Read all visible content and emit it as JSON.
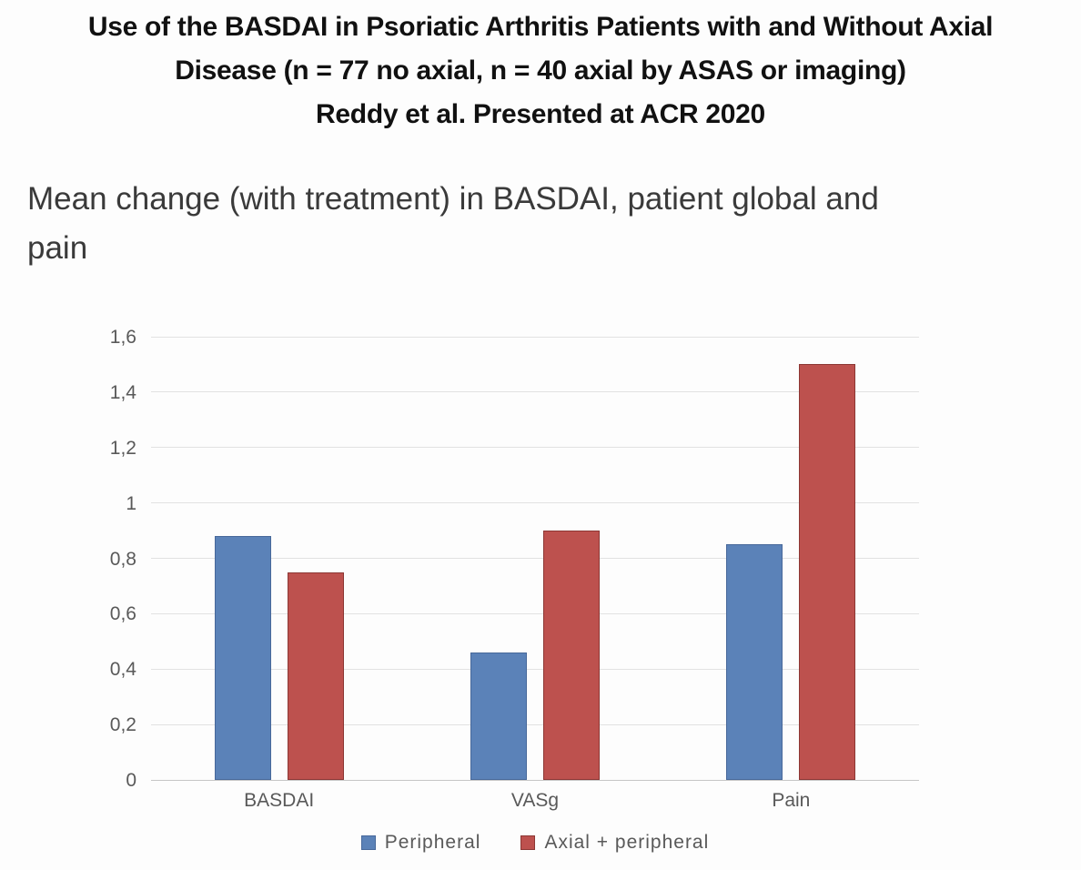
{
  "header": {
    "title_lines": [
      "Use of the BASDAI in Psoriatic Arthritis Patients with and Without Axial",
      "Disease (n = 77 no axial, n = 40 axial by ASAS or imaging)",
      "Reddy et al. Presented at ACR 2020"
    ],
    "subtitle": "Mean change (with treatment) in BASDAI, patient global and pain"
  },
  "chart_data": {
    "type": "bar",
    "title": "Mean change (with treatment) in BASDAI, patient global and pain",
    "categories": [
      "BASDAI",
      "VASg",
      "Pain"
    ],
    "series": [
      {
        "name": "Peripheral",
        "color": "#5b82b8",
        "border_color": "#47689a",
        "values": [
          0.88,
          0.46,
          0.85
        ]
      },
      {
        "name": "Axial + peripheral",
        "color": "#bd514e",
        "border_color": "#8c3734",
        "values": [
          0.75,
          0.9,
          1.5
        ]
      }
    ],
    "xlabel": "",
    "ylabel": "",
    "ylim": [
      0,
      1.6
    ],
    "ytick_step": 0.2,
    "ytick_labels": [
      "0",
      "0,2",
      "0,4",
      "0,6",
      "0,8",
      "1",
      "1,2",
      "1,4",
      "1,6"
    ],
    "grid": true,
    "legend_position": "bottom"
  }
}
